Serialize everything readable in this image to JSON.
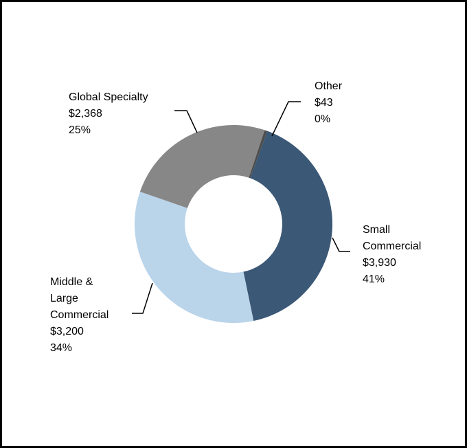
{
  "chart_data": {
    "type": "pie",
    "variant": "donut",
    "title": "",
    "slices": [
      {
        "name_lines": [
          "Small",
          "Commercial"
        ],
        "value": 3930,
        "value_label": "$3,930",
        "pct_label": "41%",
        "color": "#3b5876"
      },
      {
        "name_lines": [
          "Middle &",
          "Large",
          "Commercial"
        ],
        "value": 3200,
        "value_label": "$3,200",
        "pct_label": "34%",
        "color": "#bad4ea"
      },
      {
        "name_lines": [
          "Global Specialty"
        ],
        "value": 2368,
        "value_label": "$2,368",
        "pct_label": "25%",
        "color": "#878787"
      },
      {
        "name_lines": [
          "Other"
        ],
        "value": 43,
        "value_label": "$43",
        "pct_label": "0%",
        "color": "#4d4d4d"
      }
    ],
    "legend": "none"
  }
}
